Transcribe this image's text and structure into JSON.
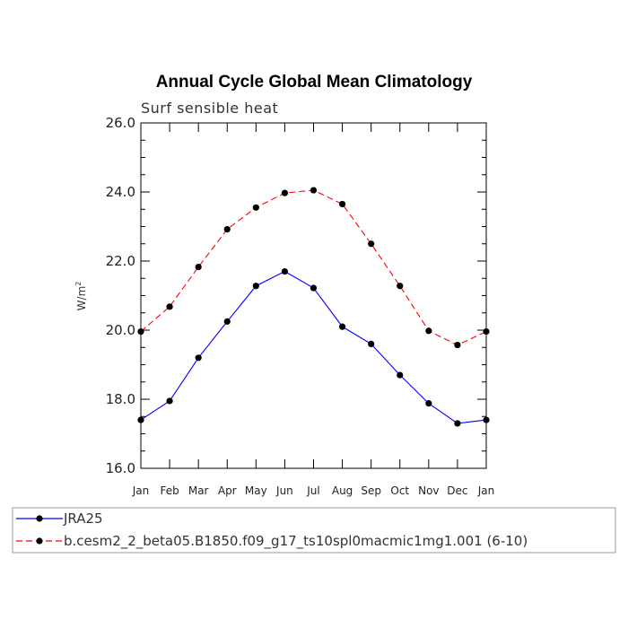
{
  "chart_data": {
    "type": "line",
    "title": "Annual Cycle Global Mean Climatology",
    "subtitle": "Surf sensible heat",
    "ylabel": "W/m",
    "ylabel_superscript": "2",
    "xlabel": "",
    "categories": [
      "Jan",
      "Feb",
      "Mar",
      "Apr",
      "May",
      "Jun",
      "Jul",
      "Aug",
      "Sep",
      "Oct",
      "Nov",
      "Dec",
      "Jan"
    ],
    "ylim": [
      16.0,
      26.0
    ],
    "yticks": [
      "16.0",
      "18.0",
      "20.0",
      "22.0",
      "24.0",
      "26.0"
    ],
    "ytick_values": [
      16,
      18,
      20,
      22,
      24,
      26
    ],
    "grid": false,
    "legend_position": "bottom",
    "series": [
      {
        "name": "JRA25",
        "color": "#0000ff",
        "dashed": false,
        "values": [
          17.4,
          17.95,
          19.2,
          20.25,
          21.28,
          21.7,
          21.22,
          20.1,
          19.6,
          18.7,
          17.88,
          17.3,
          17.4
        ]
      },
      {
        "name": "b.cesm2_2_beta05.B1850.f09_g17_ts10spl0macmic1mg1.001 (6-10)",
        "color": "#ff0000",
        "dashed": true,
        "values": [
          19.96,
          20.68,
          21.83,
          22.92,
          23.55,
          23.97,
          24.05,
          23.65,
          22.5,
          21.28,
          19.98,
          19.57,
          19.96
        ]
      }
    ]
  }
}
